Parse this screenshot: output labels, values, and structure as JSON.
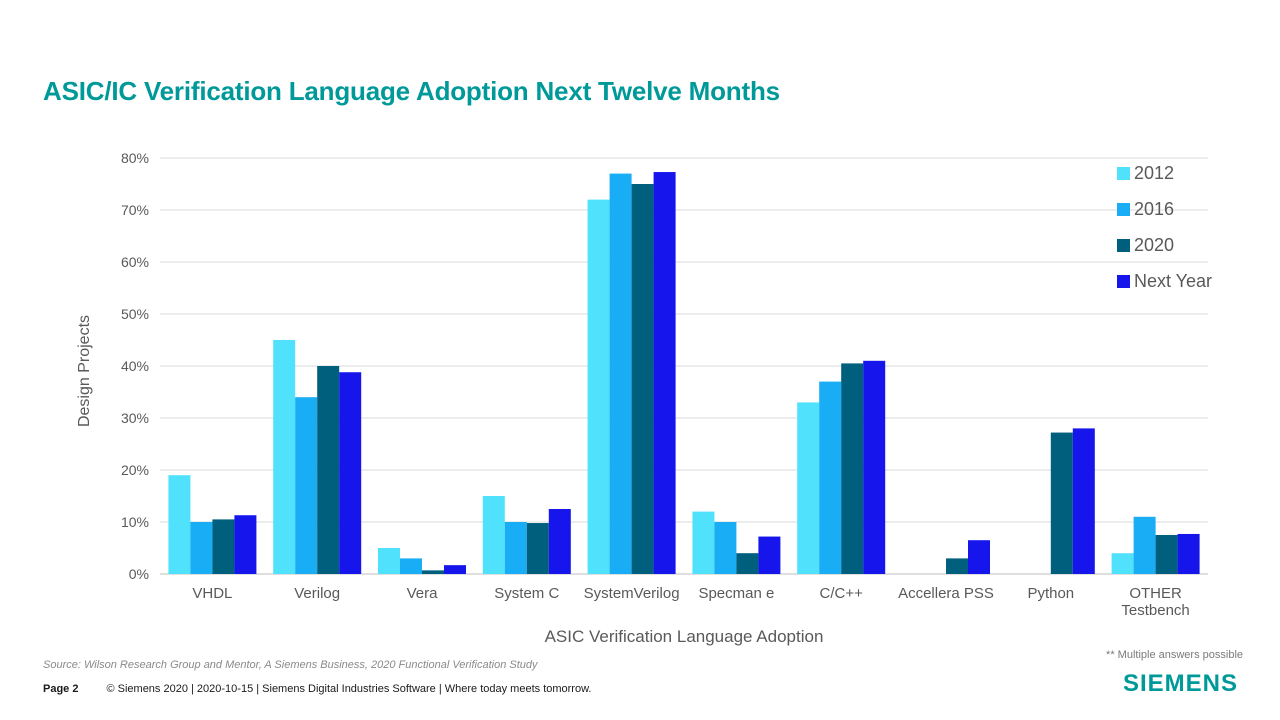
{
  "slide": {
    "title": "ASIC/IC Verification Language Adoption Next Twelve Months",
    "source": "Source:  Wilson Research Group and Mentor,  A Siemens Business, 2020 Functional Verification Study",
    "note": "** Multiple answers possible",
    "page_label": "Page 2",
    "copyright": "© Siemens 2020 | 2020-10-15 | Siemens Digital Industries Software | Where today meets tomorrow.",
    "logo": "SIEMENS"
  },
  "colors": {
    "title": "#009999",
    "series": [
      "#50E2FC",
      "#18ADF4",
      "#005F7D",
      "#1515EC"
    ],
    "grid": "#d9d9d9",
    "text": "#595959"
  },
  "chart_data": {
    "type": "bar",
    "title": "",
    "xlabel": "ASIC Verification Language Adoption",
    "ylabel": "Design Projects",
    "ylim": [
      0,
      80
    ],
    "yticks": [
      0,
      10,
      20,
      30,
      40,
      50,
      60,
      70,
      80
    ],
    "ytick_labels": [
      "0%",
      "10%",
      "20%",
      "30%",
      "40%",
      "50%",
      "60%",
      "70%",
      "80%"
    ],
    "grid": true,
    "legend_position": "top-right",
    "categories": [
      "VHDL",
      "Verilog",
      "Vera",
      "System C",
      "SystemVerilog",
      "Specman e",
      "C/C++",
      "Accellera PSS",
      "Python",
      "OTHER\nTestbench"
    ],
    "series": [
      {
        "name": "2012",
        "values": [
          19,
          45,
          5,
          15,
          72,
          12,
          33,
          null,
          null,
          4
        ]
      },
      {
        "name": "2016",
        "values": [
          10,
          34,
          3,
          10,
          77,
          10,
          37,
          null,
          null,
          11
        ]
      },
      {
        "name": "2020",
        "values": [
          10.5,
          40,
          0.7,
          9.8,
          75,
          4,
          40.5,
          3,
          27.2,
          7.5
        ]
      },
      {
        "name": "Next Year",
        "values": [
          11.3,
          38.8,
          1.7,
          12.5,
          77.3,
          7.2,
          41,
          6.5,
          28,
          7.7
        ]
      }
    ]
  }
}
